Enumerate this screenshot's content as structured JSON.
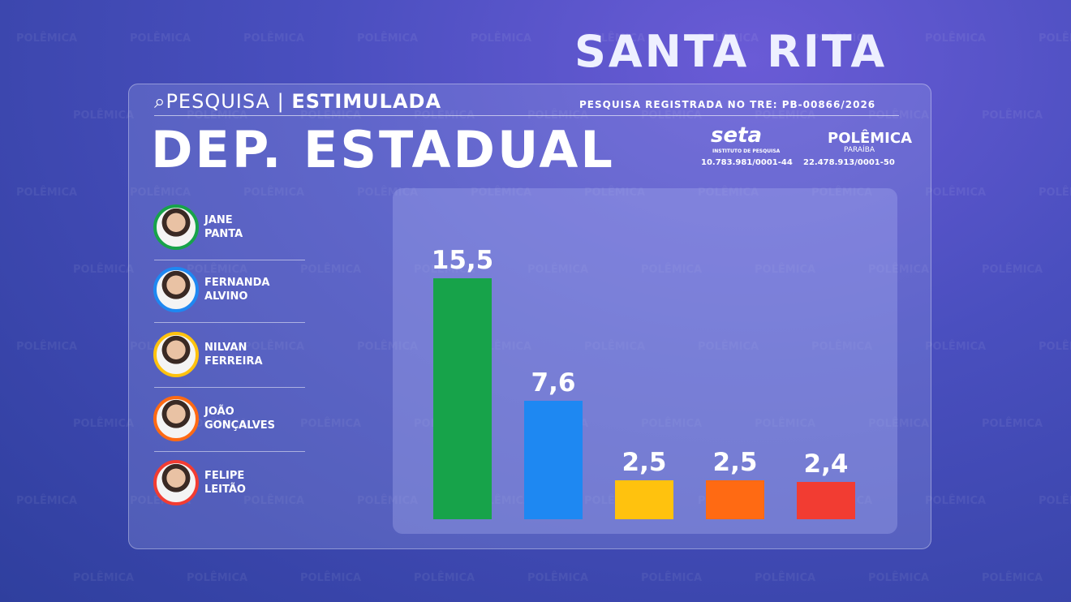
{
  "header": {
    "place": "SANTA RITA",
    "survey": "PESQUISA",
    "survey_kind": "ESTIMULADA",
    "registration": "PESQUISA REGISTRADA NO TRE: PB-00866/2026",
    "office": "DEP. ESTADUAL"
  },
  "logos": [
    {
      "name": "seta",
      "subtitle": "INSTITUTO DE PESQUISA",
      "id": "10.783.981/0001-44"
    },
    {
      "name": "POLÊMICA",
      "subtitle": "PARAÍBA",
      "id": "22.478.913/0001-50"
    }
  ],
  "watermark": "POLÊMICA",
  "chart_data": {
    "type": "bar",
    "categories": [
      "JANE PANTA",
      "FERNANDA ALVINO",
      "NILVAN FERREIRA",
      "JOÃO GONÇALVES",
      "FELIPE LEITÃO"
    ],
    "values": [
      15.5,
      7.6,
      2.5,
      2.5,
      2.4
    ],
    "value_labels": [
      "15,5",
      "7,6",
      "2,5",
      "2,5",
      "2,4"
    ],
    "colors": [
      "#17a34a",
      "#1e88f2",
      "#ffc20e",
      "#ff6a13",
      "#f23c32"
    ]
  }
}
